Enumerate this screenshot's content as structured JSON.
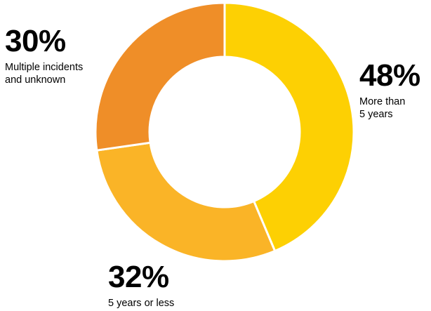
{
  "chart_data": {
    "type": "pie",
    "title": "",
    "slices": [
      {
        "value": 48,
        "label_value": "48%",
        "label_line1": "More than",
        "label_line2": "5 years",
        "color": "#FDD003"
      },
      {
        "value": 32,
        "label_value": "32%",
        "label_line1": "5 years or less",
        "label_line2": "",
        "color": "#FAB427"
      },
      {
        "value": 30,
        "label_value": "30%",
        "label_line1": "Multiple incidents",
        "label_line2": "and unknown",
        "color": "#EF8E28"
      }
    ],
    "legend": "none"
  }
}
